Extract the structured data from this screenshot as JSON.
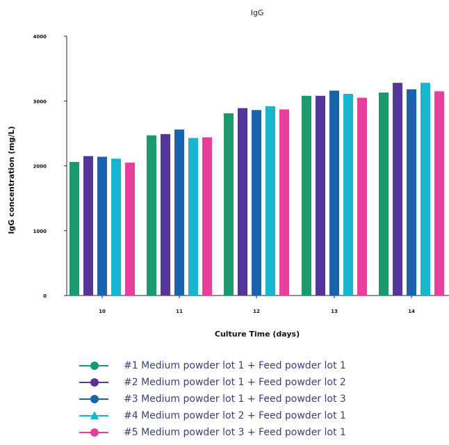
{
  "chart_data": {
    "type": "bar",
    "title": "IgG",
    "xlabel": "Culture Time (days)",
    "ylabel": "IgG concentration (mg/L)",
    "ylim": [
      0,
      4000
    ],
    "yticks": [
      0,
      1000,
      2000,
      3000,
      4000
    ],
    "categories": [
      "10",
      "11",
      "12",
      "13",
      "14"
    ],
    "series": [
      {
        "name": "#1 Medium powder lot 1 + Feed powder lot 1",
        "color": "#1a9a6a",
        "marker": "circle",
        "values": [
          2060,
          2470,
          2810,
          3080,
          3130
        ]
      },
      {
        "name": "#2 Medium powder lot 1 + Feed powder lot 2",
        "color": "#55359a",
        "marker": "circle",
        "values": [
          2150,
          2490,
          2890,
          3080,
          3280
        ]
      },
      {
        "name": "#3 Medium powder lot 1 + Feed powder lot 3",
        "color": "#1a63ad",
        "marker": "circle",
        "values": [
          2140,
          2560,
          2860,
          3160,
          3180
        ]
      },
      {
        "name": "#4 Medium powder lot 2 + Feed powder lot 1",
        "color": "#15b5cf",
        "marker": "triangle",
        "values": [
          2110,
          2430,
          2920,
          3110,
          3280
        ]
      },
      {
        "name": "#5 Medium powder lot 3 + Feed powder lot 1",
        "color": "#e8409a",
        "marker": "circle",
        "values": [
          2050,
          2440,
          2870,
          3050,
          3150
        ]
      }
    ],
    "legend_position": "bottom",
    "grid": false
  }
}
